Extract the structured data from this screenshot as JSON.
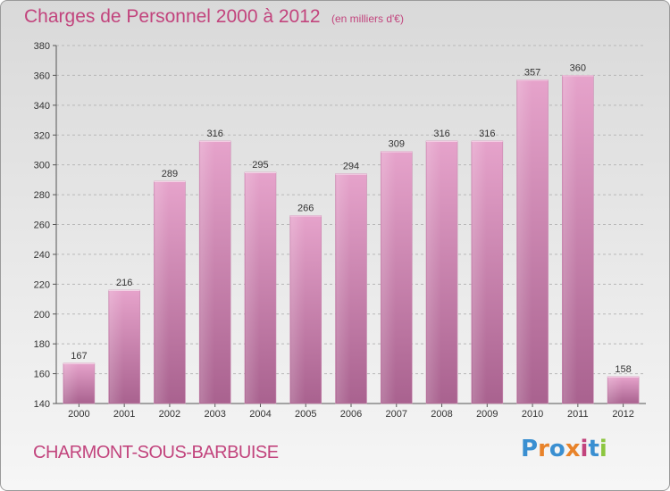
{
  "header": {
    "title": "Charges de Personnel 2000 à 2012",
    "subtitle": "(en milliers d'€)"
  },
  "footer": {
    "commune": "CHARMONT-SOUS-BARBUISE",
    "logo": {
      "text": "Proxiti",
      "letters": [
        {
          "char": "P",
          "color": "#3a8fd1"
        },
        {
          "char": "r",
          "color": "#e8832a"
        },
        {
          "char": "o",
          "color": "#3a8fd1"
        },
        {
          "char": "x",
          "color": "#e8832a"
        },
        {
          "char": "i",
          "color": "#c2447d"
        },
        {
          "char": "t",
          "color": "#3a8fd1"
        },
        {
          "char": "i",
          "color": "#8cc63f"
        }
      ]
    }
  },
  "colors": {
    "accent": "#c2447d",
    "bar_top": "#e6a3cb",
    "bar_bottom": "#a9628f",
    "grid": "#b8b8b8"
  },
  "chart_data": {
    "type": "bar",
    "title": "Charges de Personnel 2000 à 2012",
    "subtitle": "(en milliers d'€)",
    "xlabel": "",
    "ylabel": "",
    "categories": [
      "2000",
      "2001",
      "2002",
      "2003",
      "2004",
      "2005",
      "2006",
      "2007",
      "2008",
      "2009",
      "2010",
      "2011",
      "2012"
    ],
    "values": [
      167,
      216,
      289,
      316,
      295,
      266,
      294,
      309,
      316,
      316,
      357,
      360,
      158
    ],
    "ylim": [
      140,
      380
    ],
    "yticks": [
      140,
      160,
      180,
      200,
      220,
      240,
      260,
      280,
      300,
      320,
      340,
      360,
      380
    ],
    "grid": true,
    "legend": "none",
    "data_labels": true
  }
}
